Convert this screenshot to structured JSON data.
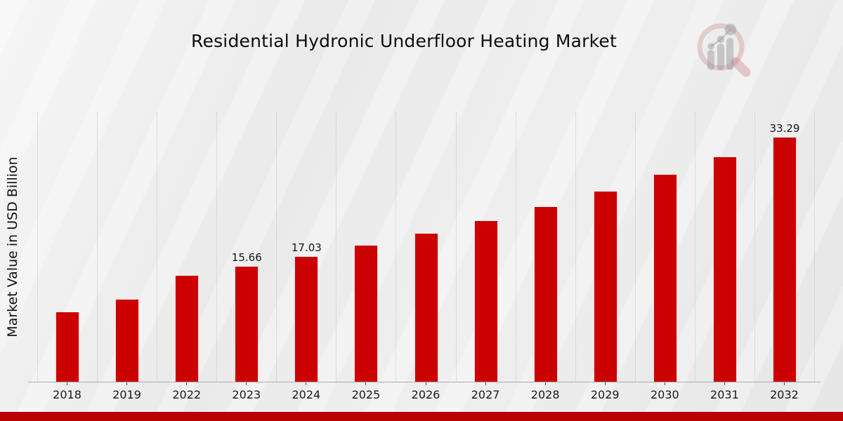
{
  "title": "Residential Hydronic Underfloor Heating Market",
  "y_axis_label": "Market Value in USD Billion",
  "logo": {
    "name": "magnifier-bar-chart-watermark"
  },
  "footer": {
    "band_color": "#b80101"
  },
  "colors": {
    "bar": "#cc0101",
    "gridline": "#c6c6c6",
    "axis_line": "#ababab",
    "text": "#1a1a1a"
  },
  "chart_data": {
    "type": "bar",
    "title": "Residential Hydronic Underfloor Heating Market",
    "xlabel": "",
    "ylabel": "Market Value in USD Billion",
    "categories": [
      "2018",
      "2019",
      "2022",
      "2023",
      "2024",
      "2025",
      "2026",
      "2027",
      "2028",
      "2029",
      "2030",
      "2031",
      "2032"
    ],
    "values": [
      9.45,
      11.17,
      14.4,
      15.66,
      17.03,
      18.52,
      20.14,
      21.9,
      23.82,
      25.9,
      28.17,
      30.63,
      33.29
    ],
    "bar_labels": [
      "",
      "",
      "",
      "15.66",
      "17.03",
      "",
      "",
      "",
      "",
      "",
      "",
      "",
      "33.29"
    ],
    "bar_color": "#cc0101",
    "ylim": [
      0,
      36.7
    ],
    "grid": "vertical-dotted",
    "legend": "none",
    "y_axis_ticks_visible": false
  }
}
